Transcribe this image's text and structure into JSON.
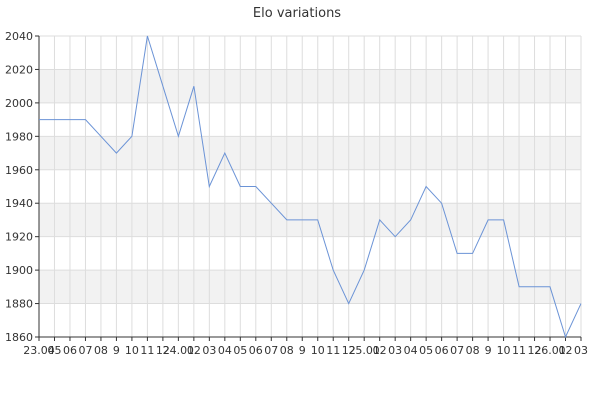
{
  "chart_data": {
    "type": "line",
    "title": "Elo variations",
    "xlabel": "",
    "ylabel": "",
    "ylim": [
      1860,
      2040
    ],
    "y_ticks": [
      1860,
      1880,
      1900,
      1920,
      1940,
      1960,
      1980,
      2000,
      2020,
      2040
    ],
    "x_tick_labels": [
      "23.04",
      "05",
      "06",
      "07",
      "08",
      "9",
      "10",
      "11",
      "12",
      "24.01",
      "02",
      "03",
      "04",
      "05",
      "06",
      "07",
      "08",
      "9",
      "10",
      "11",
      "12",
      "25.01",
      "02",
      "03",
      "04",
      "05",
      "06",
      "07",
      "08",
      "9",
      "10",
      "11",
      "12",
      "26.01",
      "02",
      "03"
    ],
    "grid": true,
    "colors": {
      "line": "#6b93d6",
      "band": "#f2f2f2",
      "grid": "#dddddd",
      "axis": "#333333"
    },
    "series": [
      {
        "values": [
          1990,
          1990,
          1990,
          1990,
          1980,
          1970,
          1980,
          2040,
          2010,
          1980,
          2010,
          1950,
          1970,
          1950,
          1950,
          1940,
          1930,
          1930,
          1930,
          1900,
          1880,
          1900,
          1930,
          1920,
          1930,
          1950,
          1940,
          1910,
          1910,
          1930,
          1930,
          1890,
          1890,
          1890,
          1860,
          1880
        ]
      }
    ]
  }
}
